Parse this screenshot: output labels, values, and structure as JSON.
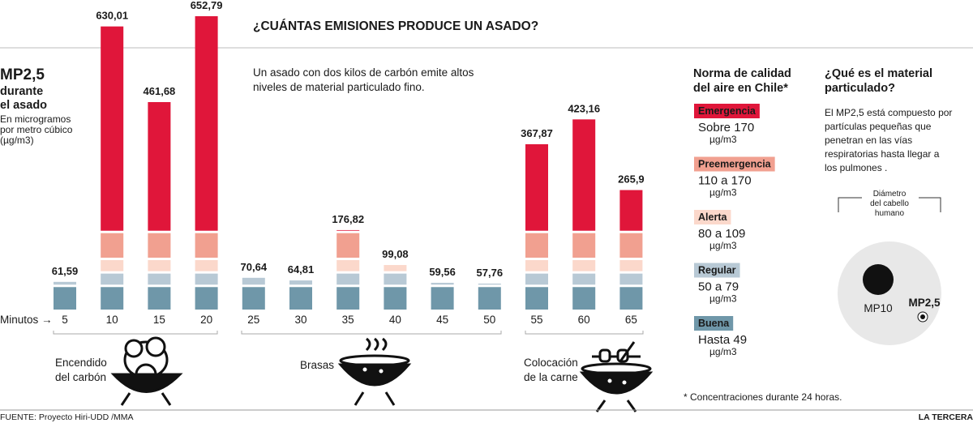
{
  "chart_data": {
    "type": "bar",
    "title": "¿CUÁNTAS EMISIONES PRODUCE UN ASADO?",
    "subtitle": [
      "Un asado con dos kilos de carbón emite altos",
      "niveles de material particulado fino."
    ],
    "y_title": [
      "MP2,5",
      "durante",
      "el asado"
    ],
    "y_unit": [
      "En microgramos",
      "por metro cúbico",
      "(µg/m3)"
    ],
    "x_title": "Minutos →",
    "categories": [
      "5",
      "10",
      "15",
      "20",
      "25",
      "30",
      "35",
      "40",
      "45",
      "50",
      "55",
      "60",
      "65"
    ],
    "values": [
      61.59,
      630.01,
      461.68,
      652.79,
      70.64,
      64.81,
      176.82,
      99.08,
      59.56,
      57.76,
      367.87,
      423.16,
      265.9
    ],
    "value_labels": [
      "61,59",
      "630,01",
      "461,68",
      "652,79",
      "70,64",
      "64,81",
      "176,82",
      "99,08",
      "59,56",
      "57,76",
      "367,87",
      "423,16",
      "265,9"
    ],
    "ylim": [
      0,
      660
    ],
    "groups": [
      {
        "lines": [
          "Encendido",
          "del carbón"
        ]
      },
      {
        "lines": [
          "Brasas"
        ]
      },
      {
        "lines": [
          "Colocación",
          "de la carne"
        ]
      }
    ],
    "legend": {
      "title": [
        "Norma de calidad",
        "del aire en Chile*"
      ],
      "bands": [
        {
          "name": "Emergencia",
          "color": "#e0163a",
          "min": 170,
          "range": "Sobre 170",
          "unit": "µg/m3"
        },
        {
          "name": "Preemergencia",
          "color": "#f1a090",
          "min": 110,
          "range": "110 a 170",
          "unit": "µg/m3"
        },
        {
          "name": "Alerta",
          "color": "#fbd8cb",
          "min": 80,
          "range": "80 a 109",
          "unit": "µg/m3"
        },
        {
          "name": "Regular",
          "color": "#b8c9d5",
          "min": 50,
          "range": "50 a 79",
          "unit": "µg/m3"
        },
        {
          "name": "Buena",
          "color": "#6f97a9",
          "range": "Hasta 49",
          "unit": "µg/m3"
        }
      ]
    },
    "footnote": "* Concentraciones durante 24 horas.",
    "source": "FUENTE: Proyecto Hiri-UDD /MMA",
    "brand": "LA TERCERA"
  },
  "sidebar": {
    "title": [
      "¿Qué es el material",
      "particulado?"
    ],
    "text": [
      "El MP2,5 está compuesto por",
      "partículas pequeñas que",
      "penetran en las vías",
      "respiratorias hasta llegar a",
      "los pulmones ."
    ],
    "diagram": {
      "hair": [
        "Diámetro",
        "del cabello",
        "humano"
      ],
      "mp10": "MP10",
      "mp25": "MP2,5"
    }
  }
}
